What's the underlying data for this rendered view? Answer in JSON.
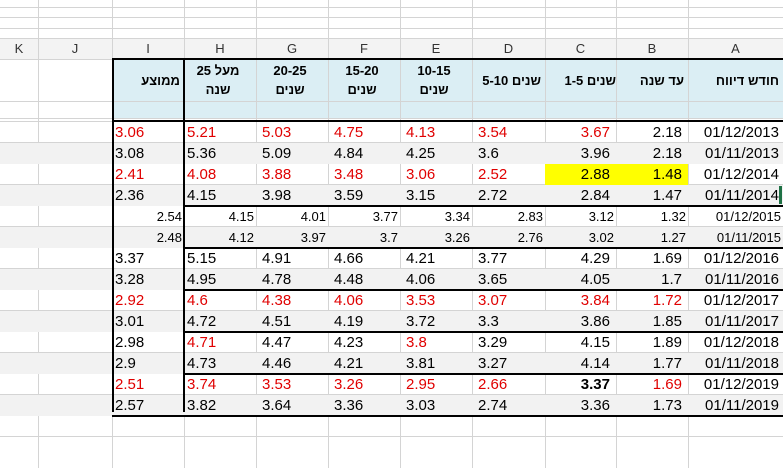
{
  "column_headers": [
    "K",
    "J",
    "I",
    "H",
    "G",
    "F",
    "E",
    "D",
    "C",
    "B",
    "A"
  ],
  "table": {
    "headers": {
      "A": "חודש דיווח",
      "B": "עד שנה",
      "C": "שנים 1-5",
      "D": "שנים 5-10",
      "E": "10-15 שנים",
      "F": "15-20 שנים",
      "G": "20-25 שנים",
      "H": "מעל 25 שנה",
      "I": "ממוצע"
    },
    "rows": [
      {
        "A": "01/12/2013",
        "B": "2.18",
        "C": "3.67",
        "D": "3.54",
        "E": "4.13",
        "F": "4.75",
        "G": "5.03",
        "H": "5.21",
        "I": "3.06"
      },
      {
        "A": "01/11/2013",
        "B": "2.18",
        "C": "3.96",
        "D": "3.6",
        "E": "4.25",
        "F": "4.84",
        "G": "5.09",
        "H": "5.36",
        "I": "3.08"
      },
      {
        "A": "01/12/2014",
        "B": "1.48",
        "C": "2.88",
        "D": "2.52",
        "E": "3.06",
        "F": "3.48",
        "G": "3.88",
        "H": "4.08",
        "I": "2.41"
      },
      {
        "A": "01/11/2014",
        "B": "1.47",
        "C": "2.84",
        "D": "2.72",
        "E": "3.15",
        "F": "3.59",
        "G": "3.98",
        "H": "4.15",
        "I": "2.36"
      },
      {
        "A": "01/12/2015",
        "B": "1.32",
        "C": "3.12",
        "D": "2.83",
        "E": "3.34",
        "F": "3.77",
        "G": "4.01",
        "H": "4.15",
        "I": "2.54"
      },
      {
        "A": "01/11/2015",
        "B": "1.27",
        "C": "3.02",
        "D": "2.76",
        "E": "3.26",
        "F": "3.7",
        "G": "3.97",
        "H": "4.12",
        "I": "2.48"
      },
      {
        "A": "01/12/2016",
        "B": "1.69",
        "C": "4.29",
        "D": "3.77",
        "E": "4.21",
        "F": "4.66",
        "G": "4.91",
        "H": "5.15",
        "I": "3.37"
      },
      {
        "A": "01/11/2016",
        "B": "1.7",
        "C": "4.05",
        "D": "3.65",
        "E": "4.06",
        "F": "4.48",
        "G": "4.78",
        "H": "4.95",
        "I": "3.28"
      },
      {
        "A": "01/12/2017",
        "B": "1.72",
        "C": "3.84",
        "D": "3.07",
        "E": "3.53",
        "F": "4.06",
        "G": "4.38",
        "H": "4.6",
        "I": "2.92"
      },
      {
        "A": "01/11/2017",
        "B": "1.85",
        "C": "3.86",
        "D": "3.3",
        "E": "3.72",
        "F": "4.19",
        "G": "4.51",
        "H": "4.72",
        "I": "3.01"
      },
      {
        "A": "01/12/2018",
        "B": "1.89",
        "C": "4.15",
        "D": "3.29",
        "E": "3.8",
        "F": "4.23",
        "G": "4.47",
        "H": "4.71",
        "I": "2.98"
      },
      {
        "A": "01/11/2018",
        "B": "1.77",
        "C": "4.14",
        "D": "3.27",
        "E": "3.81",
        "F": "4.21",
        "G": "4.46",
        "H": "4.73",
        "I": "2.9"
      },
      {
        "A": "01/12/2019",
        "B": "1.69",
        "C": "3.37",
        "D": "2.66",
        "E": "2.95",
        "F": "3.26",
        "G": "3.53",
        "H": "3.74",
        "I": "2.51"
      },
      {
        "A": "01/11/2019",
        "B": "1.73",
        "C": "3.36",
        "D": "2.74",
        "E": "3.03",
        "F": "3.36",
        "G": "3.64",
        "H": "3.82",
        "I": "2.57"
      }
    ]
  },
  "colors": {
    "red_text": "#e00000",
    "highlight": "#ffff00",
    "header_fill": "#dbeef4"
  }
}
